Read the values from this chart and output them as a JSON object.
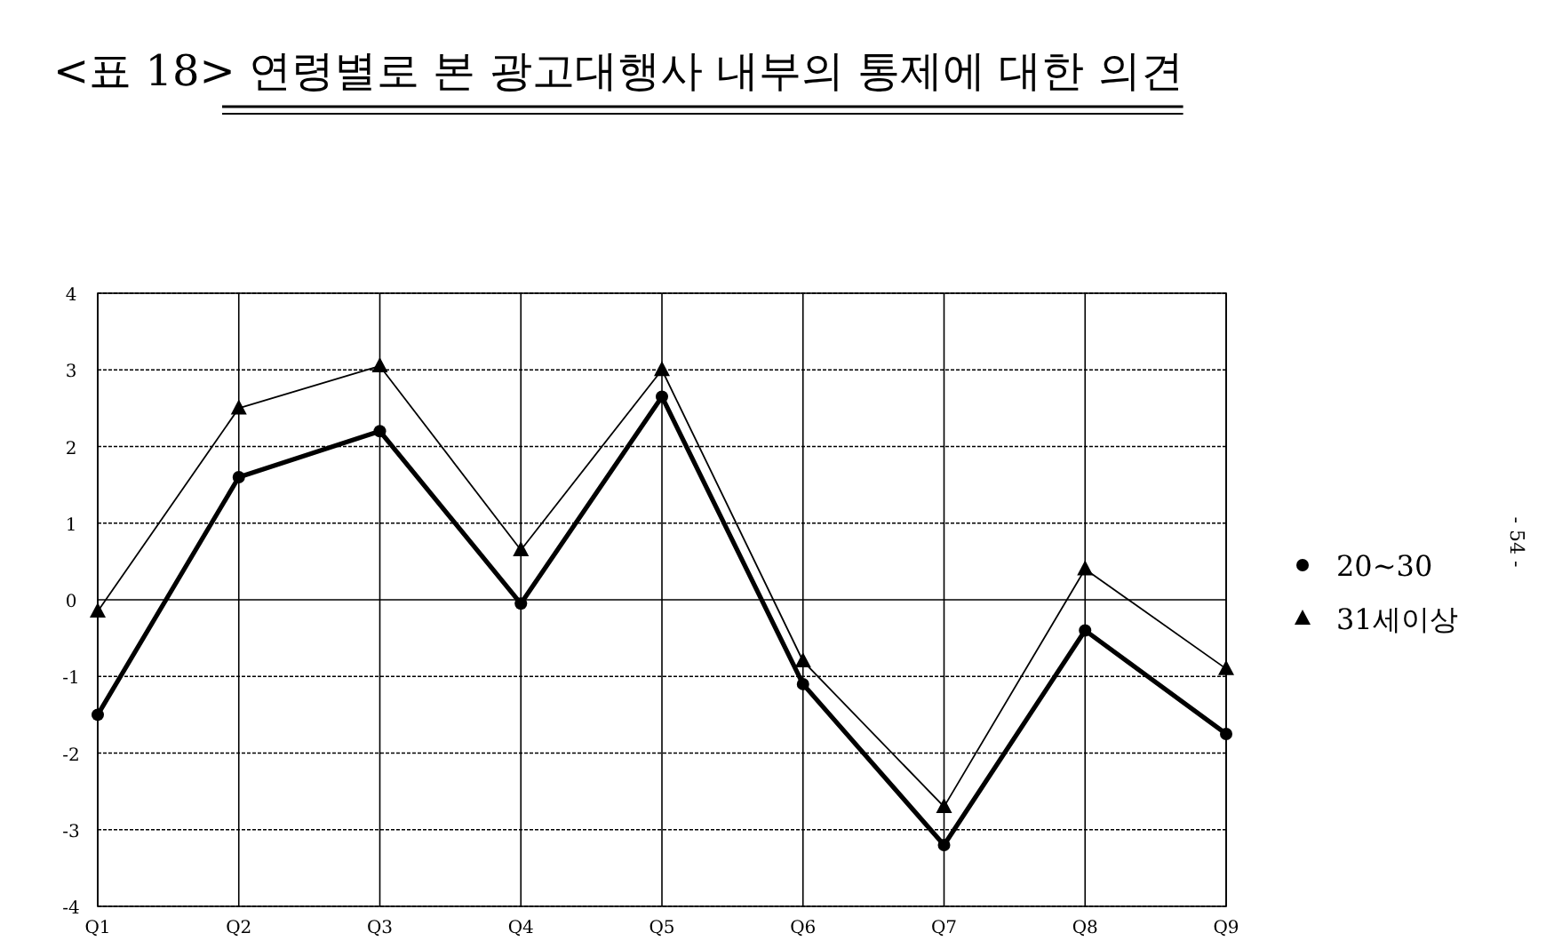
{
  "chart_data": {
    "type": "line",
    "title": "<표 18> 연령별로 본 광고대행사 내부의 통제에 대한 의견",
    "categories": [
      "Q1",
      "Q2",
      "Q3",
      "Q4",
      "Q5",
      "Q6",
      "Q7",
      "Q8",
      "Q9"
    ],
    "series": [
      {
        "name": "20~30",
        "color": "#000000",
        "marker": "circle",
        "values": [
          -1.5,
          1.6,
          2.2,
          -0.05,
          2.65,
          -1.1,
          -3.2,
          -0.4,
          -1.75
        ]
      },
      {
        "name": "31세이상",
        "color": "#000000",
        "marker": "triangle",
        "values": [
          -0.15,
          2.5,
          3.05,
          0.65,
          3.0,
          -0.8,
          -2.7,
          0.4,
          -0.9
        ]
      }
    ],
    "ylim": [
      -4,
      4
    ],
    "yticks": [
      -4,
      -3,
      -2,
      -1,
      0,
      1,
      2,
      3,
      4
    ],
    "grid": true,
    "legend": "right",
    "line_style": "solid",
    "annotations": [
      "- 54 -"
    ]
  }
}
